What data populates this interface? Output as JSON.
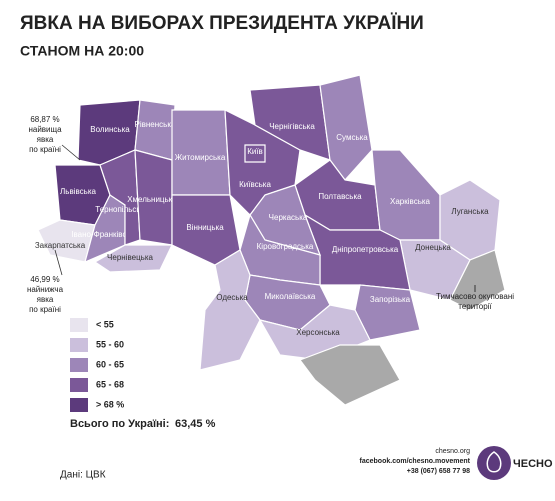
{
  "header": {
    "title": "ЯВКА НА ВИБОРАХ ПРЕЗИДЕНТА УКРАЇНИ",
    "subtitle": "СТАНОМ НА 20:00"
  },
  "regions": [
    {
      "name": "Волинська",
      "color": "#5c3a7c"
    },
    {
      "name": "Рівненська",
      "color": "#9d86b8"
    },
    {
      "name": "Львівська",
      "color": "#5c3a7c"
    },
    {
      "name": "Закарпатська",
      "color": "#e8e4ee"
    },
    {
      "name": "Івано-Франківська",
      "color": "#9d86b8"
    },
    {
      "name": "Тернопільська",
      "color": "#7b5898"
    },
    {
      "name": "Хмельницька",
      "color": "#7b5898"
    },
    {
      "name": "Чернівецька",
      "color": "#cbbfdc"
    },
    {
      "name": "Житомирська",
      "color": "#9d86b8"
    },
    {
      "name": "Вінницька",
      "color": "#7b5898"
    },
    {
      "name": "Київська",
      "color": "#7b5898"
    },
    {
      "name": "Київ",
      "color": "#7b5898"
    },
    {
      "name": "Чернігівська",
      "color": "#7b5898"
    },
    {
      "name": "Сумська",
      "color": "#9d86b8"
    },
    {
      "name": "Полтавська",
      "color": "#7b5898"
    },
    {
      "name": "Харківська",
      "color": "#9d86b8"
    },
    {
      "name": "Луганська",
      "color": "#cbbfdc"
    },
    {
      "name": "Донецька",
      "color": "#cbbfdc"
    },
    {
      "name": "Дніпропетровська",
      "color": "#7b5898"
    },
    {
      "name": "Черкаська",
      "color": "#9d86b8"
    },
    {
      "name": "Кіровоградська",
      "color": "#9d86b8"
    },
    {
      "name": "Запорізька",
      "color": "#9d86b8"
    },
    {
      "name": "Миколаївська",
      "color": "#9d86b8"
    },
    {
      "name": "Одеська",
      "color": "#cbbfdc"
    },
    {
      "name": "Херсонська",
      "color": "#cbbfdc"
    }
  ],
  "occupied": {
    "lines": [
      "Тимчасово окуповані",
      "території"
    ],
    "color": "#a9a9a9"
  },
  "annotations": [
    {
      "lines": [
        "68,87 %",
        "найвища",
        "явка",
        "по країні"
      ]
    },
    {
      "lines": [
        "46,99 %",
        "найнижча",
        "явка",
        "по країні"
      ]
    }
  ],
  "legend": [
    {
      "label": "< 55",
      "color": "#e8e4ee"
    },
    {
      "label": "55 - 60",
      "color": "#cbbfdc"
    },
    {
      "label": "60 - 65",
      "color": "#9d86b8"
    },
    {
      "label": "65 - 68",
      "color": "#7b5898"
    },
    {
      "label": "> 68 %",
      "color": "#5c3a7c"
    }
  ],
  "total": {
    "label": "Всього по Україні:",
    "value": "63,45 %"
  },
  "source": "Дані: ЦВК",
  "footer": {
    "lines": [
      "chesno.org",
      "facebook.com/chesno.movement",
      "+38 (067) 658 77 98"
    ],
    "logo": "ЧЕСНО"
  }
}
